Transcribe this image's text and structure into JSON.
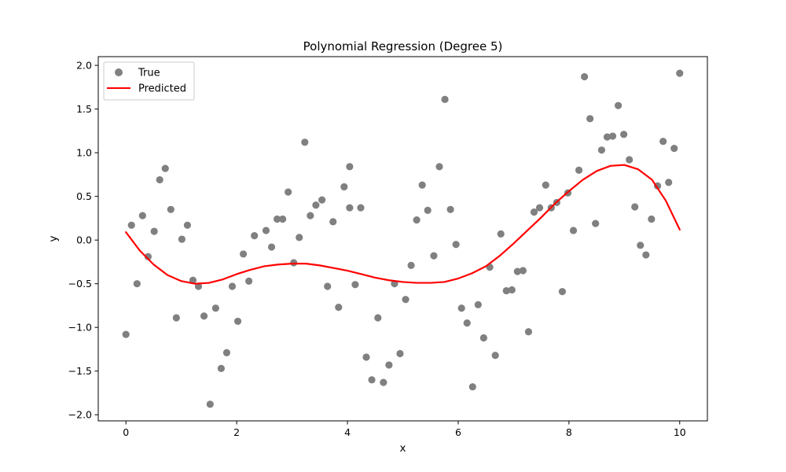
{
  "chart_data": {
    "type": "scatter",
    "title": "Polynomial Regression (Degree 5)",
    "xlabel": "x",
    "ylabel": "y",
    "xlim": [
      -0.5,
      10.5
    ],
    "ylim": [
      -2.07,
      2.1
    ],
    "xticks": [
      0,
      2,
      4,
      6,
      8,
      10
    ],
    "yticks": [
      -2.0,
      -1.5,
      -1.0,
      -0.5,
      0.0,
      0.5,
      1.0,
      1.5,
      2.0
    ],
    "xtick_labels": [
      "0",
      "2",
      "4",
      "6",
      "8",
      "10"
    ],
    "ytick_labels": [
      "−2.0",
      "−1.5",
      "−1.0",
      "−0.5",
      "0.0",
      "0.5",
      "1.0",
      "1.5",
      "2.0"
    ],
    "grid": false,
    "legend_position": "top-left",
    "series": [
      {
        "name": "True",
        "kind": "scatter",
        "color": "#808080",
        "points": [
          [
            0.0,
            -1.08
          ],
          [
            0.1,
            0.17
          ],
          [
            0.2,
            -0.5
          ],
          [
            0.3,
            0.28
          ],
          [
            0.4,
            -0.19
          ],
          [
            0.51,
            0.1
          ],
          [
            0.61,
            0.69
          ],
          [
            0.71,
            0.82
          ],
          [
            0.81,
            0.35
          ],
          [
            0.91,
            -0.89
          ],
          [
            1.01,
            0.01
          ],
          [
            1.11,
            0.17
          ],
          [
            1.21,
            -0.46
          ],
          [
            1.31,
            -0.53
          ],
          [
            1.41,
            -0.87
          ],
          [
            1.52,
            -1.88
          ],
          [
            1.62,
            -0.78
          ],
          [
            1.72,
            -1.47
          ],
          [
            1.82,
            -1.29
          ],
          [
            1.92,
            -0.53
          ],
          [
            2.02,
            -0.93
          ],
          [
            2.12,
            -0.16
          ],
          [
            2.22,
            -0.47
          ],
          [
            2.32,
            0.05
          ],
          [
            2.53,
            0.11
          ],
          [
            2.63,
            -0.08
          ],
          [
            2.73,
            0.24
          ],
          [
            2.83,
            0.24
          ],
          [
            2.93,
            0.55
          ],
          [
            3.03,
            -0.26
          ],
          [
            3.13,
            0.03
          ],
          [
            3.23,
            1.12
          ],
          [
            3.33,
            0.28
          ],
          [
            3.43,
            0.4
          ],
          [
            3.54,
            0.46
          ],
          [
            3.64,
            -0.53
          ],
          [
            3.74,
            0.21
          ],
          [
            3.84,
            -0.77
          ],
          [
            3.94,
            0.61
          ],
          [
            4.04,
            0.84
          ],
          [
            4.04,
            0.37
          ],
          [
            4.14,
            -0.51
          ],
          [
            4.24,
            0.37
          ],
          [
            4.34,
            -1.34
          ],
          [
            4.44,
            -1.6
          ],
          [
            4.55,
            -0.89
          ],
          [
            4.65,
            -1.63
          ],
          [
            4.75,
            -1.43
          ],
          [
            4.85,
            -0.5
          ],
          [
            4.95,
            -1.3
          ],
          [
            5.05,
            -0.68
          ],
          [
            5.15,
            -0.29
          ],
          [
            5.25,
            0.23
          ],
          [
            5.35,
            0.63
          ],
          [
            5.45,
            0.34
          ],
          [
            5.56,
            -0.18
          ],
          [
            5.66,
            0.84
          ],
          [
            5.76,
            1.61
          ],
          [
            5.86,
            0.35
          ],
          [
            5.96,
            -0.05
          ],
          [
            6.06,
            -0.78
          ],
          [
            6.16,
            -0.95
          ],
          [
            6.26,
            -1.68
          ],
          [
            6.36,
            -0.74
          ],
          [
            6.46,
            -1.12
          ],
          [
            6.57,
            -0.31
          ],
          [
            6.67,
            -1.32
          ],
          [
            6.77,
            0.07
          ],
          [
            6.87,
            -0.58
          ],
          [
            6.97,
            -0.57
          ],
          [
            7.07,
            -0.36
          ],
          [
            7.17,
            -0.35
          ],
          [
            7.27,
            -1.05
          ],
          [
            7.37,
            0.32
          ],
          [
            7.47,
            0.37
          ],
          [
            7.58,
            0.63
          ],
          [
            7.68,
            0.37
          ],
          [
            7.78,
            0.43
          ],
          [
            7.88,
            -0.59
          ],
          [
            7.98,
            0.54
          ],
          [
            8.08,
            0.11
          ],
          [
            8.18,
            0.8
          ],
          [
            8.28,
            1.87
          ],
          [
            8.38,
            1.39
          ],
          [
            8.48,
            0.19
          ],
          [
            8.59,
            1.03
          ],
          [
            8.69,
            1.18
          ],
          [
            8.79,
            1.19
          ],
          [
            8.89,
            1.54
          ],
          [
            8.99,
            1.21
          ],
          [
            9.09,
            0.92
          ],
          [
            9.19,
            0.38
          ],
          [
            9.29,
            -0.06
          ],
          [
            9.39,
            -0.17
          ],
          [
            9.49,
            0.24
          ],
          [
            9.6,
            0.62
          ],
          [
            9.7,
            1.13
          ],
          [
            9.8,
            0.66
          ],
          [
            9.9,
            1.05
          ],
          [
            10.0,
            1.91
          ]
        ]
      },
      {
        "name": "Predicted",
        "kind": "line",
        "color": "#ff0000",
        "points": [
          [
            0.0,
            0.09
          ],
          [
            0.25,
            -0.12
          ],
          [
            0.5,
            -0.28
          ],
          [
            0.75,
            -0.4
          ],
          [
            1.0,
            -0.47
          ],
          [
            1.25,
            -0.5
          ],
          [
            1.5,
            -0.49
          ],
          [
            1.75,
            -0.45
          ],
          [
            2.0,
            -0.39
          ],
          [
            2.25,
            -0.34
          ],
          [
            2.5,
            -0.3
          ],
          [
            2.75,
            -0.28
          ],
          [
            3.0,
            -0.27
          ],
          [
            3.25,
            -0.27
          ],
          [
            3.5,
            -0.29
          ],
          [
            3.75,
            -0.32
          ],
          [
            4.0,
            -0.35
          ],
          [
            4.25,
            -0.39
          ],
          [
            4.5,
            -0.43
          ],
          [
            4.75,
            -0.46
          ],
          [
            5.0,
            -0.48
          ],
          [
            5.25,
            -0.49
          ],
          [
            5.5,
            -0.49
          ],
          [
            5.75,
            -0.48
          ],
          [
            6.0,
            -0.44
          ],
          [
            6.25,
            -0.38
          ],
          [
            6.5,
            -0.3
          ],
          [
            6.75,
            -0.18
          ],
          [
            7.0,
            -0.04
          ],
          [
            7.25,
            0.11
          ],
          [
            7.5,
            0.26
          ],
          [
            7.75,
            0.42
          ],
          [
            8.0,
            0.56
          ],
          [
            8.25,
            0.69
          ],
          [
            8.5,
            0.79
          ],
          [
            8.75,
            0.85
          ],
          [
            9.0,
            0.86
          ],
          [
            9.25,
            0.81
          ],
          [
            9.5,
            0.69
          ],
          [
            9.75,
            0.45
          ],
          [
            10.0,
            0.12
          ]
        ]
      }
    ]
  }
}
